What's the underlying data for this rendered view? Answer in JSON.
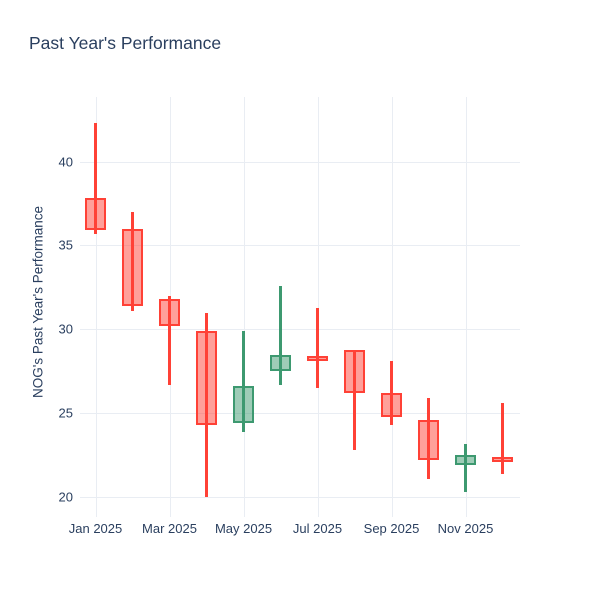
{
  "chart_data": {
    "type": "candlestick",
    "title": "Past Year's Performance",
    "ylabel": "NOG's Past Year's Performance",
    "xlabel": "",
    "x_tick_labels": [
      "Jan 2025",
      "Mar 2025",
      "May 2025",
      "Jul 2025",
      "Sep 2025",
      "Nov 2025"
    ],
    "y_ticks": [
      40,
      35,
      30,
      25,
      20
    ],
    "ylim": [
      18.8,
      43.8
    ],
    "grid": "on",
    "legend": "none",
    "series": [
      {
        "x": "Jan 2025",
        "open": 37.8,
        "high": 42.3,
        "low": 35.7,
        "close": 35.9,
        "direction": "decreasing"
      },
      {
        "x": "Feb 2025",
        "open": 36.0,
        "high": 37.0,
        "low": 31.1,
        "close": 31.4,
        "direction": "decreasing"
      },
      {
        "x": "Mar 2025",
        "open": 31.8,
        "high": 32.0,
        "low": 26.7,
        "close": 30.2,
        "direction": "decreasing"
      },
      {
        "x": "Apr 2025",
        "open": 29.9,
        "high": 31.0,
        "low": 20.0,
        "close": 24.3,
        "direction": "decreasing"
      },
      {
        "x": "May 2025",
        "open": 24.4,
        "high": 29.9,
        "low": 23.9,
        "close": 26.6,
        "direction": "increasing"
      },
      {
        "x": "Jun 2025",
        "open": 27.5,
        "high": 32.6,
        "low": 26.7,
        "close": 28.5,
        "direction": "increasing"
      },
      {
        "x": "Jul 2025",
        "open": 28.4,
        "high": 31.3,
        "low": 26.5,
        "close": 28.2,
        "direction": "decreasing"
      },
      {
        "x": "Aug 2025",
        "open": 28.8,
        "high": 28.8,
        "low": 22.8,
        "close": 26.2,
        "direction": "decreasing"
      },
      {
        "x": "Sep 2025",
        "open": 26.2,
        "high": 28.1,
        "low": 24.3,
        "close": 24.8,
        "direction": "decreasing"
      },
      {
        "x": "Oct 2025",
        "open": 24.6,
        "high": 25.9,
        "low": 21.1,
        "close": 22.2,
        "direction": "decreasing"
      },
      {
        "x": "Nov 2025",
        "open": 21.9,
        "high": 23.2,
        "low": 20.3,
        "close": 22.5,
        "direction": "increasing"
      },
      {
        "x": "Dec 2025",
        "open": 22.4,
        "high": 25.6,
        "low": 21.4,
        "close": 22.2,
        "direction": "decreasing"
      }
    ],
    "colors": {
      "increasing_line": "#3D9970",
      "increasing_fill": "rgba(61,153,112,0.5)",
      "decreasing_line": "#FF4136",
      "decreasing_fill": "rgba(255,65,54,0.5)",
      "grid": "#e9edf3",
      "text": "#2a3f5f",
      "background": "#ffffff"
    }
  }
}
